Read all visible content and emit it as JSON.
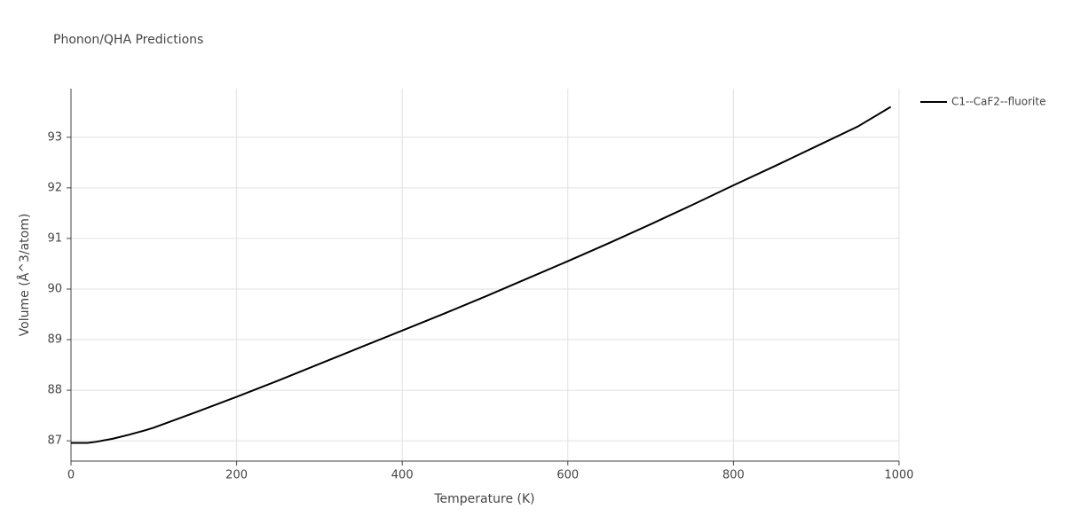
{
  "chart_data": {
    "type": "line",
    "title": "Phonon/QHA Predictions",
    "x_label": "Temperature (K)",
    "y_label": "Volume (Å^3/atom)",
    "x": [
      0,
      20,
      30,
      50,
      70,
      90,
      100,
      150,
      200,
      250,
      300,
      350,
      400,
      450,
      500,
      550,
      600,
      650,
      700,
      750,
      800,
      850,
      900,
      950,
      990
    ],
    "series": [
      {
        "name": "C1--CaF2--fluorite",
        "color": "#000000",
        "values": [
          86.96,
          86.96,
          86.98,
          87.04,
          87.12,
          87.21,
          87.26,
          87.56,
          87.87,
          88.19,
          88.52,
          88.85,
          89.18,
          89.51,
          89.85,
          90.2,
          90.55,
          90.91,
          91.28,
          91.66,
          92.05,
          92.43,
          92.82,
          93.21,
          93.6
        ]
      }
    ],
    "xlim": [
      0,
      1000
    ],
    "xticks": [
      0,
      200,
      400,
      600,
      800,
      1000
    ],
    "ylim": [
      86.6,
      93.96
    ],
    "yticks": [
      87,
      88,
      89,
      90,
      91,
      92,
      93
    ],
    "grid": true,
    "legend": "right"
  }
}
